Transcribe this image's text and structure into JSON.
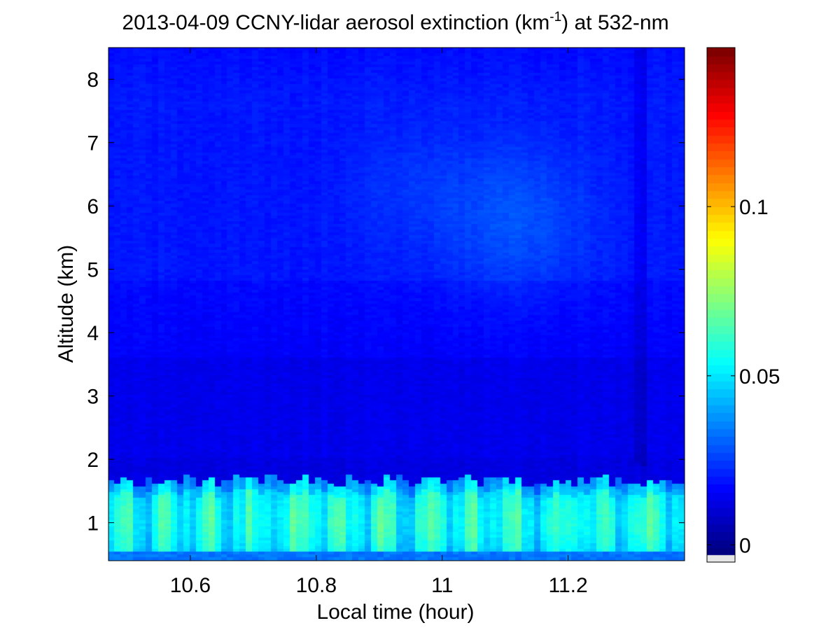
{
  "chart_data": {
    "type": "heatmap",
    "title": {
      "prefix": "2013-04-09 CCNY-lidar aerosol extinction (km",
      "superscript": "-1",
      "suffix": ") at 532-nm"
    },
    "xlabel": "Local time (hour)",
    "ylabel": "Altitude (km)",
    "xlim": [
      10.47,
      11.385
    ],
    "ylim": [
      0.4,
      8.5
    ],
    "xticks": [
      10.6,
      10.8,
      11.0,
      11.2
    ],
    "xtick_labels": [
      "10.6",
      "10.8",
      "11",
      "11.2"
    ],
    "yticks": [
      1,
      2,
      3,
      4,
      5,
      6,
      7,
      8
    ],
    "ytick_labels": [
      "1",
      "2",
      "3",
      "4",
      "5",
      "6",
      "7",
      "8"
    ],
    "colorbar": {
      "colormap": "jet",
      "clim": [
        -0.003,
        0.147
      ],
      "ticks": [
        0,
        0.05,
        0.1
      ],
      "tick_labels": [
        "0",
        "0.05",
        "0.1"
      ]
    },
    "description_values": {
      "boundary_layer_top_km": 1.7,
      "boundary_layer_extinction_range": [
        0.025,
        0.05
      ],
      "free_troposphere_extinction_range": [
        0.0,
        0.015
      ]
    }
  }
}
